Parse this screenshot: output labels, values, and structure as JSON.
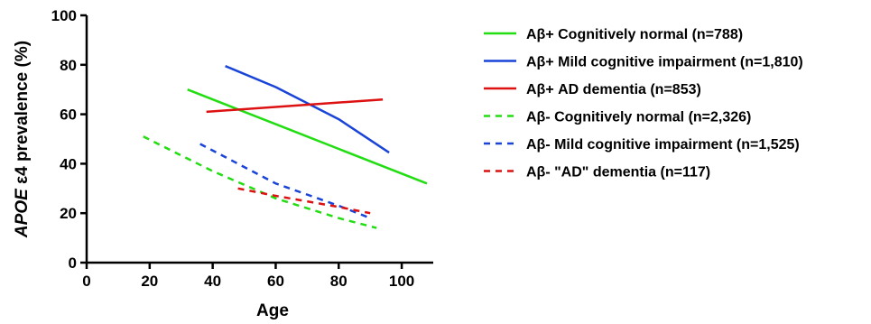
{
  "chart_data": {
    "type": "line",
    "title": "",
    "xlabel": "Age",
    "ylabel": {
      "italic": "APOE",
      "rest": " ε4 prevalence (%)"
    },
    "xlim": [
      0,
      110
    ],
    "ylim": [
      0,
      100
    ],
    "x_ticks": [
      "0",
      "20",
      "40",
      "60",
      "80",
      "100"
    ],
    "y_ticks": [
      "0",
      "20",
      "40",
      "60",
      "80",
      "100"
    ],
    "legend_position": "right",
    "series": [
      {
        "name": "Aβ+ Cognitively normal (n=788)",
        "color": "#22dd11",
        "dashed": false,
        "points": [
          [
            32,
            70
          ],
          [
            60,
            56
          ],
          [
            80,
            46
          ],
          [
            108,
            32
          ]
        ]
      },
      {
        "name": "Aβ+ Mild cognitive impairment (n=1,810)",
        "color": "#1a44d8",
        "dashed": false,
        "points": [
          [
            44,
            79.5
          ],
          [
            60,
            71
          ],
          [
            80,
            58
          ],
          [
            96,
            44.5
          ]
        ]
      },
      {
        "name": "Aβ+ AD dementia (n=853)",
        "color": "#dd1111",
        "dashed": false,
        "points": [
          [
            38,
            61
          ],
          [
            94,
            66
          ]
        ]
      },
      {
        "name": "Aβ- Cognitively normal (n=2,326)",
        "color": "#22dd11",
        "dashed": true,
        "points": [
          [
            18,
            51
          ],
          [
            40,
            37
          ],
          [
            60,
            26
          ],
          [
            80,
            18
          ],
          [
            92,
            14
          ]
        ]
      },
      {
        "name": "Aβ- Mild cognitive impairment (n=1,525)",
        "color": "#1a44d8",
        "dashed": true,
        "points": [
          [
            36,
            48
          ],
          [
            60,
            32
          ],
          [
            80,
            23
          ],
          [
            90,
            18
          ]
        ]
      },
      {
        "name": "Aβ- \"AD\" dementia (n=117)",
        "color": "#dd1111",
        "dashed": true,
        "points": [
          [
            48,
            30
          ],
          [
            60,
            27
          ],
          [
            80,
            22.5
          ],
          [
            90,
            20
          ]
        ]
      }
    ]
  }
}
